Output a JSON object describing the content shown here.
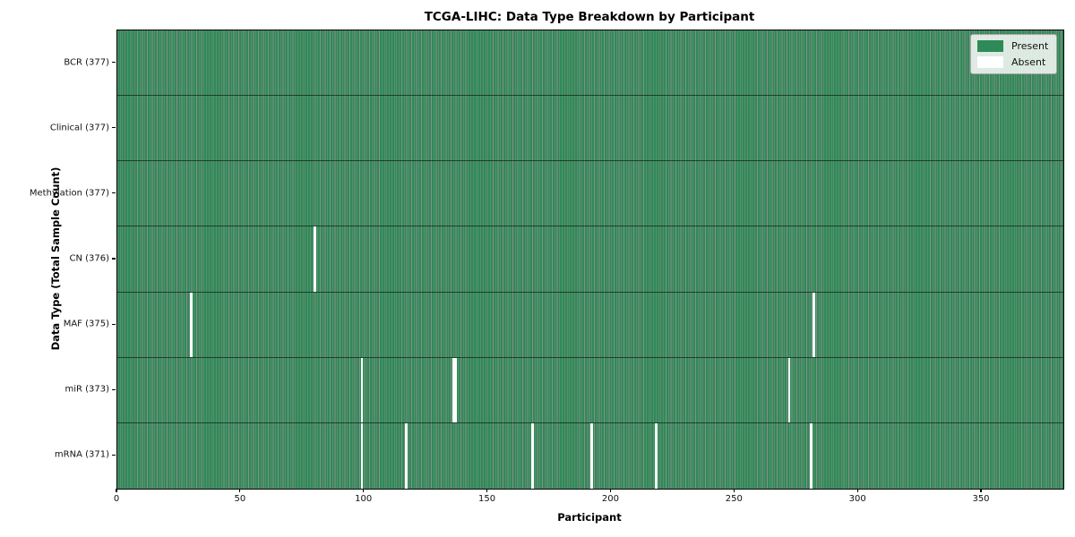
{
  "title": "TCGA-LIHC: Data Type Breakdown by Participant",
  "axes": {
    "xlabel": "Participant",
    "ylabel": "Data Type (Total Sample Count)",
    "x_ticks": [
      0,
      50,
      100,
      150,
      200,
      250,
      300,
      350
    ],
    "x_display_max": 383
  },
  "legend": {
    "present_label": "Present",
    "absent_label": "Absent"
  },
  "colors": {
    "present": "#2e8b57",
    "absent": "#ffffff",
    "cell_edge": "rgba(0,0,0,0.45)",
    "row_divider": "rgba(0,0,0,0.55)",
    "legend_bg": "rgba(255,255,255,0.82)",
    "legend_border": "#a8a8a8"
  },
  "chart_data": {
    "type": "heatmap",
    "title": "TCGA-LIHC: Data Type Breakdown by Participant",
    "xlabel": "Participant",
    "ylabel": "Data Type (Total Sample Count)",
    "x_range": [
      0,
      377
    ],
    "n_participants": 377,
    "legend": [
      "Present",
      "Absent"
    ],
    "value_colors": {
      "present": "#2e8b57",
      "absent": "#ffffff"
    },
    "rows": [
      {
        "data_type": "BCR",
        "label": "BCR (377)",
        "present_count": 377,
        "absent_participants": []
      },
      {
        "data_type": "Clinical",
        "label": "Clinical (377)",
        "present_count": 377,
        "absent_participants": []
      },
      {
        "data_type": "Methylation",
        "label": "Methylation (377)",
        "present_count": 377,
        "absent_participants": []
      },
      {
        "data_type": "CN",
        "label": "CN (376)",
        "present_count": 376,
        "absent_participants": [
          80
        ]
      },
      {
        "data_type": "MAF",
        "label": "MAF (375)",
        "present_count": 375,
        "absent_participants": [
          30,
          282
        ]
      },
      {
        "data_type": "miR",
        "label": "miR (373)",
        "present_count": 373,
        "absent_participants": [
          99,
          136,
          137,
          272
        ]
      },
      {
        "data_type": "mRNA",
        "label": "mRNA (371)",
        "present_count": 371,
        "absent_participants": [
          99,
          117,
          168,
          192,
          218,
          281
        ]
      }
    ]
  }
}
